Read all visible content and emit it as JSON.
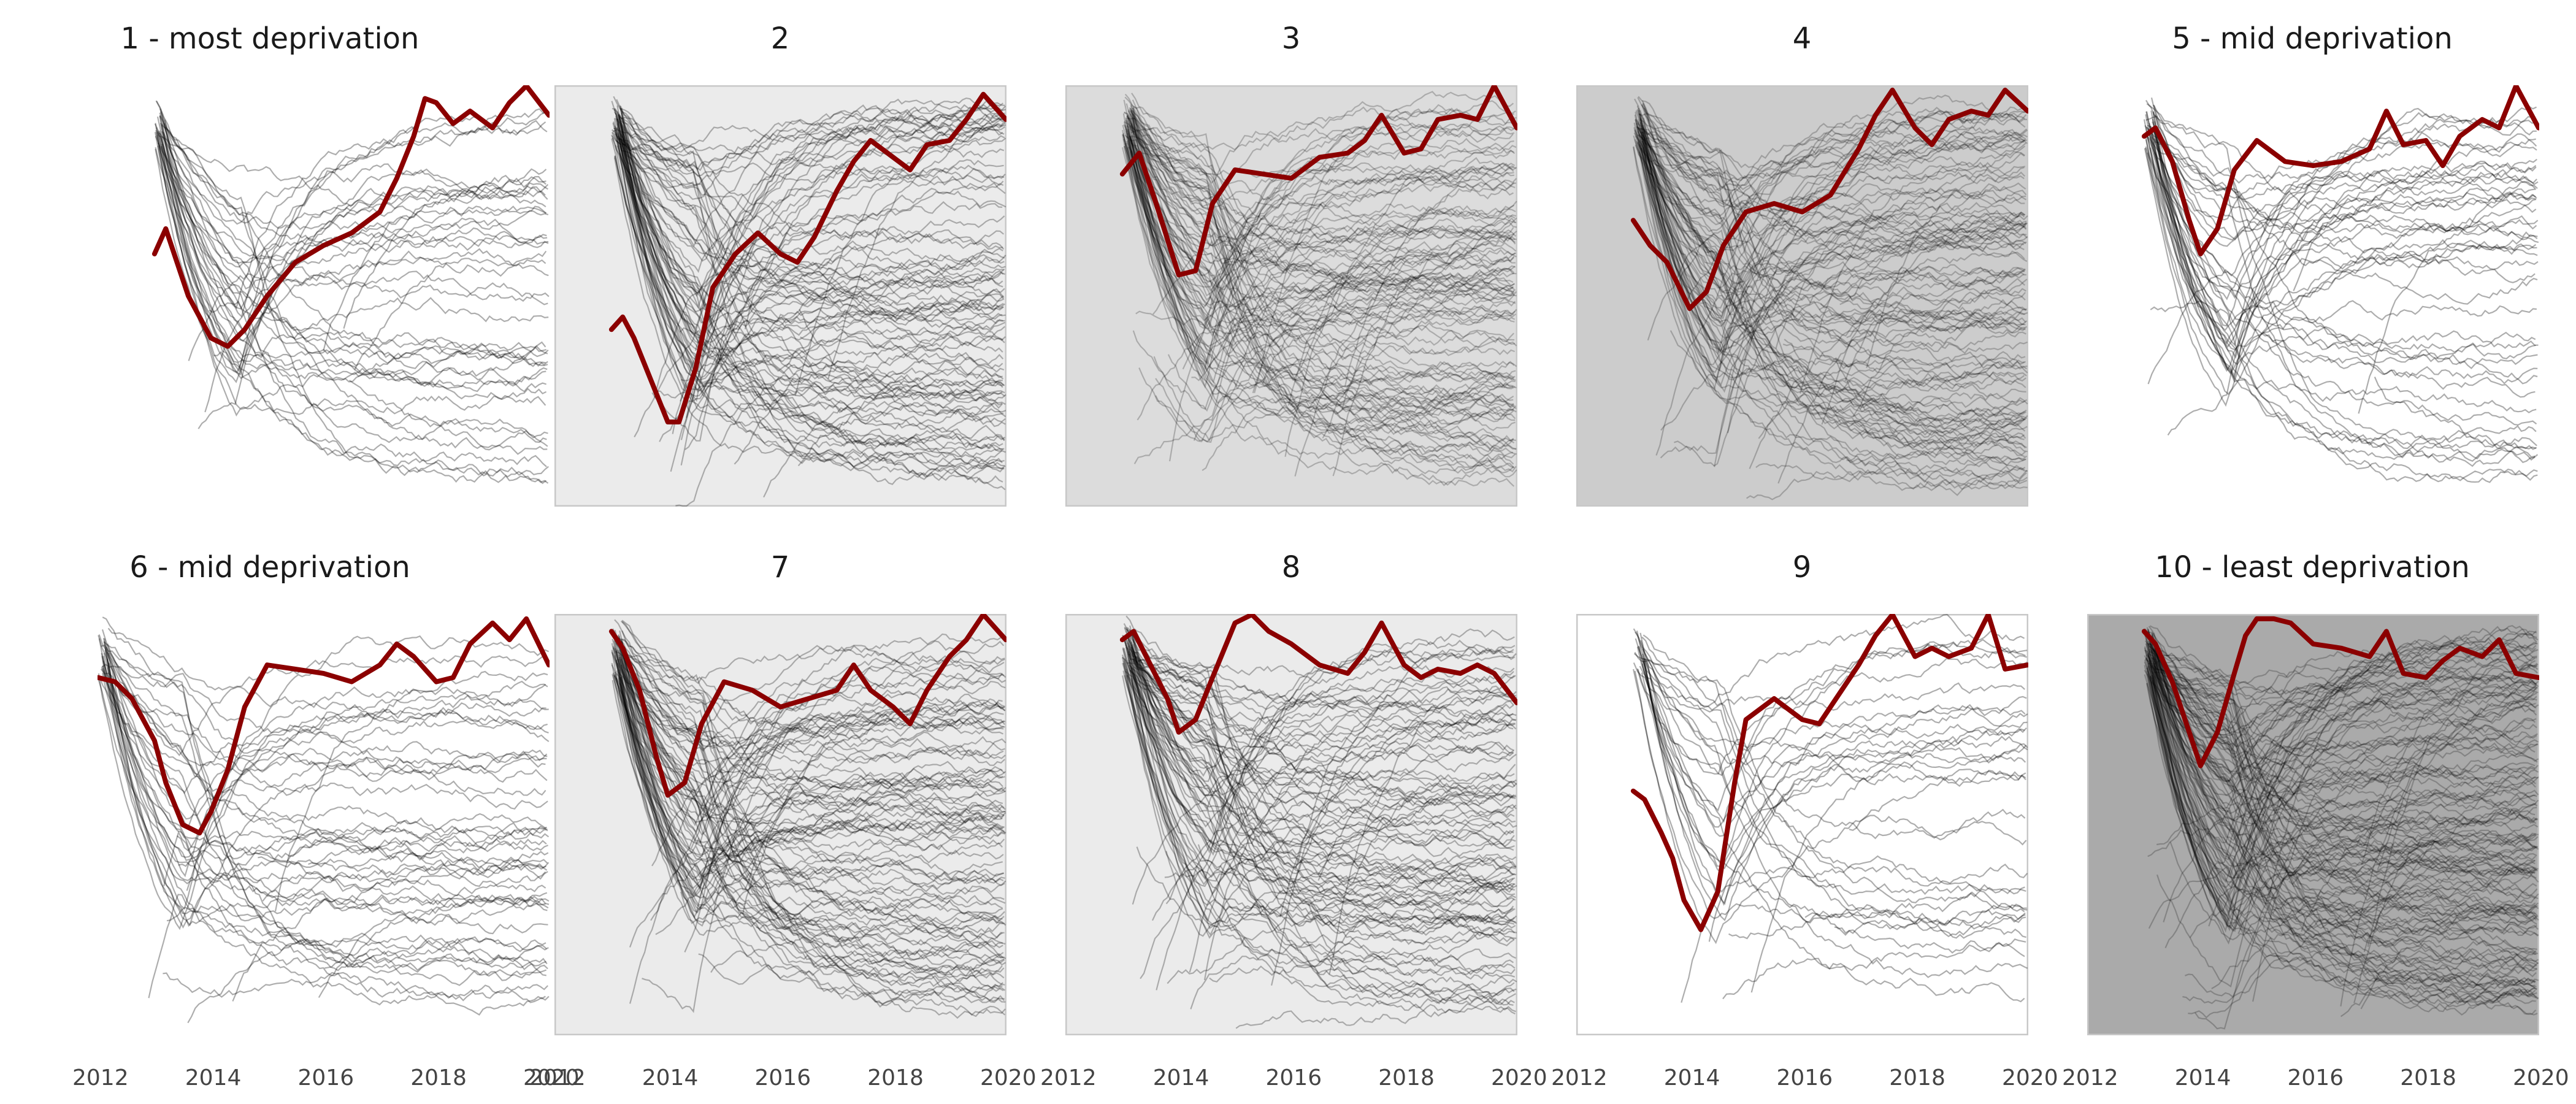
{
  "chart_data": {
    "type": "line",
    "layout_grid": "2 rows x 5 columns of small multiples",
    "x_range": [
      2012,
      2020
    ],
    "x_ticks": [
      2012,
      2014,
      2016,
      2018,
      2020
    ],
    "x_tick_labels": [
      "2012",
      "2014",
      "2016",
      "2018",
      "2020"
    ],
    "y_axis": "unlabeled, normalized 0 (bottom) to 1 (top)",
    "grid": false,
    "colors": {
      "highlight": "#8b0000",
      "background_lines": "#000000"
    },
    "panels": [
      {
        "title": "1 - most deprivation",
        "background": "#ffffff",
        "framed": false,
        "n_background_lines": 45,
        "highlight_series": {
          "x": [
            2013.0,
            2013.2,
            2013.4,
            2013.6,
            2014.0,
            2014.3,
            2014.6,
            2015.0,
            2015.5,
            2016.0,
            2016.5,
            2017.0,
            2017.3,
            2017.6,
            2017.8,
            2018.0,
            2018.3,
            2018.6,
            2019.0,
            2019.3,
            2019.6,
            2020.0
          ],
          "y": [
            0.6,
            0.66,
            0.58,
            0.5,
            0.4,
            0.38,
            0.42,
            0.5,
            0.58,
            0.62,
            0.65,
            0.7,
            0.78,
            0.88,
            0.97,
            0.96,
            0.91,
            0.94,
            0.9,
            0.96,
            1.0,
            0.93
          ]
        }
      },
      {
        "title": "2",
        "background": "#ebebeb",
        "framed": true,
        "n_background_lines": 100,
        "highlight_series": {
          "x": [
            2013.0,
            2013.2,
            2013.4,
            2013.7,
            2014.0,
            2014.2,
            2014.5,
            2014.8,
            2015.2,
            2015.6,
            2016.0,
            2016.3,
            2016.6,
            2017.0,
            2017.3,
            2017.6,
            2018.0,
            2018.3,
            2018.6,
            2019.0,
            2019.3,
            2019.6,
            2020.0
          ],
          "y": [
            0.42,
            0.45,
            0.4,
            0.3,
            0.2,
            0.2,
            0.33,
            0.52,
            0.6,
            0.65,
            0.6,
            0.58,
            0.64,
            0.75,
            0.82,
            0.87,
            0.83,
            0.8,
            0.86,
            0.87,
            0.92,
            0.98,
            0.92
          ]
        }
      },
      {
        "title": "3",
        "background": "#dcdcdc",
        "framed": true,
        "n_background_lines": 120,
        "highlight_series": {
          "x": [
            2013.0,
            2013.3,
            2013.6,
            2014.0,
            2014.3,
            2014.6,
            2015.0,
            2015.5,
            2016.0,
            2016.5,
            2017.0,
            2017.3,
            2017.6,
            2018.0,
            2018.3,
            2018.6,
            2019.0,
            2019.3,
            2019.6,
            2020.0
          ],
          "y": [
            0.79,
            0.84,
            0.72,
            0.55,
            0.56,
            0.72,
            0.8,
            0.79,
            0.78,
            0.83,
            0.84,
            0.87,
            0.93,
            0.84,
            0.85,
            0.92,
            0.93,
            0.92,
            1.0,
            0.9
          ]
        }
      },
      {
        "title": "4",
        "background": "#cccccc",
        "framed": true,
        "n_background_lines": 120,
        "highlight_series": {
          "x": [
            2013.0,
            2013.3,
            2013.6,
            2014.0,
            2014.3,
            2014.6,
            2015.0,
            2015.5,
            2016.0,
            2016.5,
            2017.0,
            2017.3,
            2017.6,
            2018.0,
            2018.3,
            2018.6,
            2019.0,
            2019.3,
            2019.6,
            2020.0
          ],
          "y": [
            0.68,
            0.62,
            0.58,
            0.47,
            0.51,
            0.62,
            0.7,
            0.72,
            0.7,
            0.74,
            0.85,
            0.93,
            0.99,
            0.9,
            0.86,
            0.92,
            0.94,
            0.93,
            0.99,
            0.94
          ]
        }
      },
      {
        "title": "5 - mid deprivation",
        "background": "#ffffff",
        "framed": false,
        "n_background_lines": 50,
        "highlight_series": {
          "x": [
            2013.0,
            2013.2,
            2013.5,
            2013.8,
            2014.0,
            2014.3,
            2014.6,
            2015.0,
            2015.5,
            2016.0,
            2016.5,
            2017.0,
            2017.3,
            2017.6,
            2018.0,
            2018.3,
            2018.6,
            2019.0,
            2019.3,
            2019.6,
            2020.0
          ],
          "y": [
            0.88,
            0.9,
            0.82,
            0.68,
            0.6,
            0.66,
            0.8,
            0.87,
            0.82,
            0.81,
            0.82,
            0.85,
            0.94,
            0.86,
            0.87,
            0.81,
            0.88,
            0.92,
            0.9,
            1.0,
            0.9
          ]
        }
      },
      {
        "title": "6 - mid deprivation",
        "background": "#ffffff",
        "framed": false,
        "n_background_lines": 50,
        "highlight_series": {
          "x": [
            2012.0,
            2012.3,
            2012.6,
            2013.0,
            2013.2,
            2013.5,
            2013.8,
            2014.0,
            2014.3,
            2014.6,
            2015.0,
            2015.5,
            2016.0,
            2016.5,
            2017.0,
            2017.3,
            2017.6,
            2018.0,
            2018.3,
            2018.6,
            2019.0,
            2019.3,
            2019.6,
            2020.0
          ],
          "y": [
            0.85,
            0.84,
            0.8,
            0.7,
            0.6,
            0.5,
            0.48,
            0.53,
            0.63,
            0.78,
            0.88,
            0.87,
            0.86,
            0.84,
            0.88,
            0.93,
            0.9,
            0.84,
            0.85,
            0.93,
            0.98,
            0.94,
            0.99,
            0.88
          ]
        }
      },
      {
        "title": "7",
        "background": "#ebebeb",
        "framed": true,
        "n_background_lines": 100,
        "highlight_series": {
          "x": [
            2013.0,
            2013.2,
            2013.5,
            2013.8,
            2014.0,
            2014.3,
            2014.6,
            2015.0,
            2015.5,
            2016.0,
            2016.5,
            2017.0,
            2017.3,
            2017.6,
            2018.0,
            2018.3,
            2018.6,
            2019.0,
            2019.3,
            2019.6,
            2020.0
          ],
          "y": [
            0.96,
            0.92,
            0.82,
            0.66,
            0.57,
            0.6,
            0.74,
            0.84,
            0.82,
            0.78,
            0.8,
            0.82,
            0.88,
            0.82,
            0.78,
            0.74,
            0.82,
            0.9,
            0.94,
            1.0,
            0.94
          ]
        }
      },
      {
        "title": "8",
        "background": "#ebebeb",
        "framed": true,
        "n_background_lines": 100,
        "highlight_series": {
          "x": [
            2013.0,
            2013.2,
            2013.5,
            2013.8,
            2014.0,
            2014.3,
            2014.6,
            2015.0,
            2015.3,
            2015.6,
            2016.0,
            2016.5,
            2017.0,
            2017.3,
            2017.6,
            2018.0,
            2018.3,
            2018.6,
            2019.0,
            2019.3,
            2019.6,
            2020.0
          ],
          "y": [
            0.94,
            0.96,
            0.88,
            0.8,
            0.72,
            0.75,
            0.85,
            0.98,
            1.0,
            0.96,
            0.93,
            0.88,
            0.86,
            0.91,
            0.98,
            0.88,
            0.85,
            0.87,
            0.86,
            0.88,
            0.86,
            0.79
          ]
        }
      },
      {
        "title": "9",
        "background": "#ffffff",
        "framed": true,
        "n_background_lines": 35,
        "highlight_series": {
          "x": [
            2013.0,
            2013.2,
            2013.5,
            2013.7,
            2013.9,
            2014.2,
            2014.5,
            2014.8,
            2015.0,
            2015.5,
            2016.0,
            2016.3,
            2016.6,
            2017.0,
            2017.3,
            2017.6,
            2018.0,
            2018.3,
            2018.6,
            2019.0,
            2019.3,
            2019.6,
            2020.0
          ],
          "y": [
            0.58,
            0.56,
            0.48,
            0.42,
            0.32,
            0.25,
            0.34,
            0.6,
            0.75,
            0.8,
            0.75,
            0.74,
            0.8,
            0.88,
            0.95,
            1.0,
            0.9,
            0.92,
            0.9,
            0.92,
            1.0,
            0.87,
            0.88
          ]
        }
      },
      {
        "title": "10 - least deprivation",
        "background": "#aaaaaa",
        "framed": true,
        "n_background_lines": 150,
        "highlight_series": {
          "x": [
            2013.0,
            2013.2,
            2013.5,
            2013.8,
            2014.0,
            2014.3,
            2014.6,
            2014.8,
            2015.0,
            2015.3,
            2015.6,
            2016.0,
            2016.5,
            2017.0,
            2017.3,
            2017.6,
            2018.0,
            2018.3,
            2018.6,
            2019.0,
            2019.3,
            2019.6,
            2020.0
          ],
          "y": [
            0.96,
            0.93,
            0.84,
            0.72,
            0.64,
            0.72,
            0.86,
            0.95,
            0.99,
            0.99,
            0.98,
            0.93,
            0.92,
            0.9,
            0.96,
            0.86,
            0.85,
            0.89,
            0.92,
            0.9,
            0.94,
            0.86,
            0.85
          ]
        }
      }
    ]
  }
}
